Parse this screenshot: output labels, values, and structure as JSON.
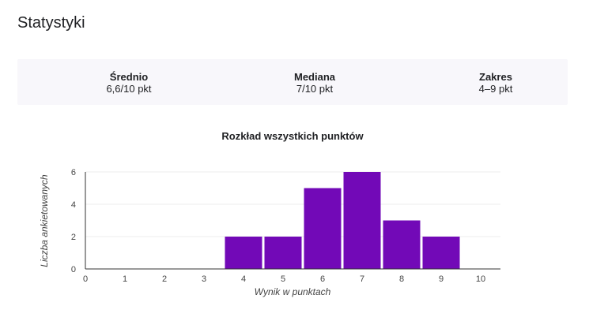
{
  "page": {
    "title": "Statystyki"
  },
  "stats": {
    "mean_label": "Średnio",
    "mean_value": "6,6/10 pkt",
    "median_label": "Mediana",
    "median_value": "7/10 pkt",
    "range_label": "Zakres",
    "range_value": "4–9 pkt"
  },
  "colors": {
    "bar": "#7209b7",
    "panel": "#f8f7fb"
  },
  "chart_data": {
    "type": "bar",
    "title": "Rozkład wszystkich punktów",
    "xlabel": "Wynik w punktach",
    "ylabel": "Liczba ankietowanych",
    "categories": [
      "0",
      "1",
      "2",
      "3",
      "4",
      "5",
      "6",
      "7",
      "8",
      "9",
      "10"
    ],
    "values": [
      0,
      0,
      0,
      0,
      2,
      2,
      5,
      6,
      3,
      2,
      0
    ],
    "ylim": [
      0,
      6
    ],
    "yticks": [
      0,
      2,
      4,
      6
    ],
    "grid": true
  }
}
